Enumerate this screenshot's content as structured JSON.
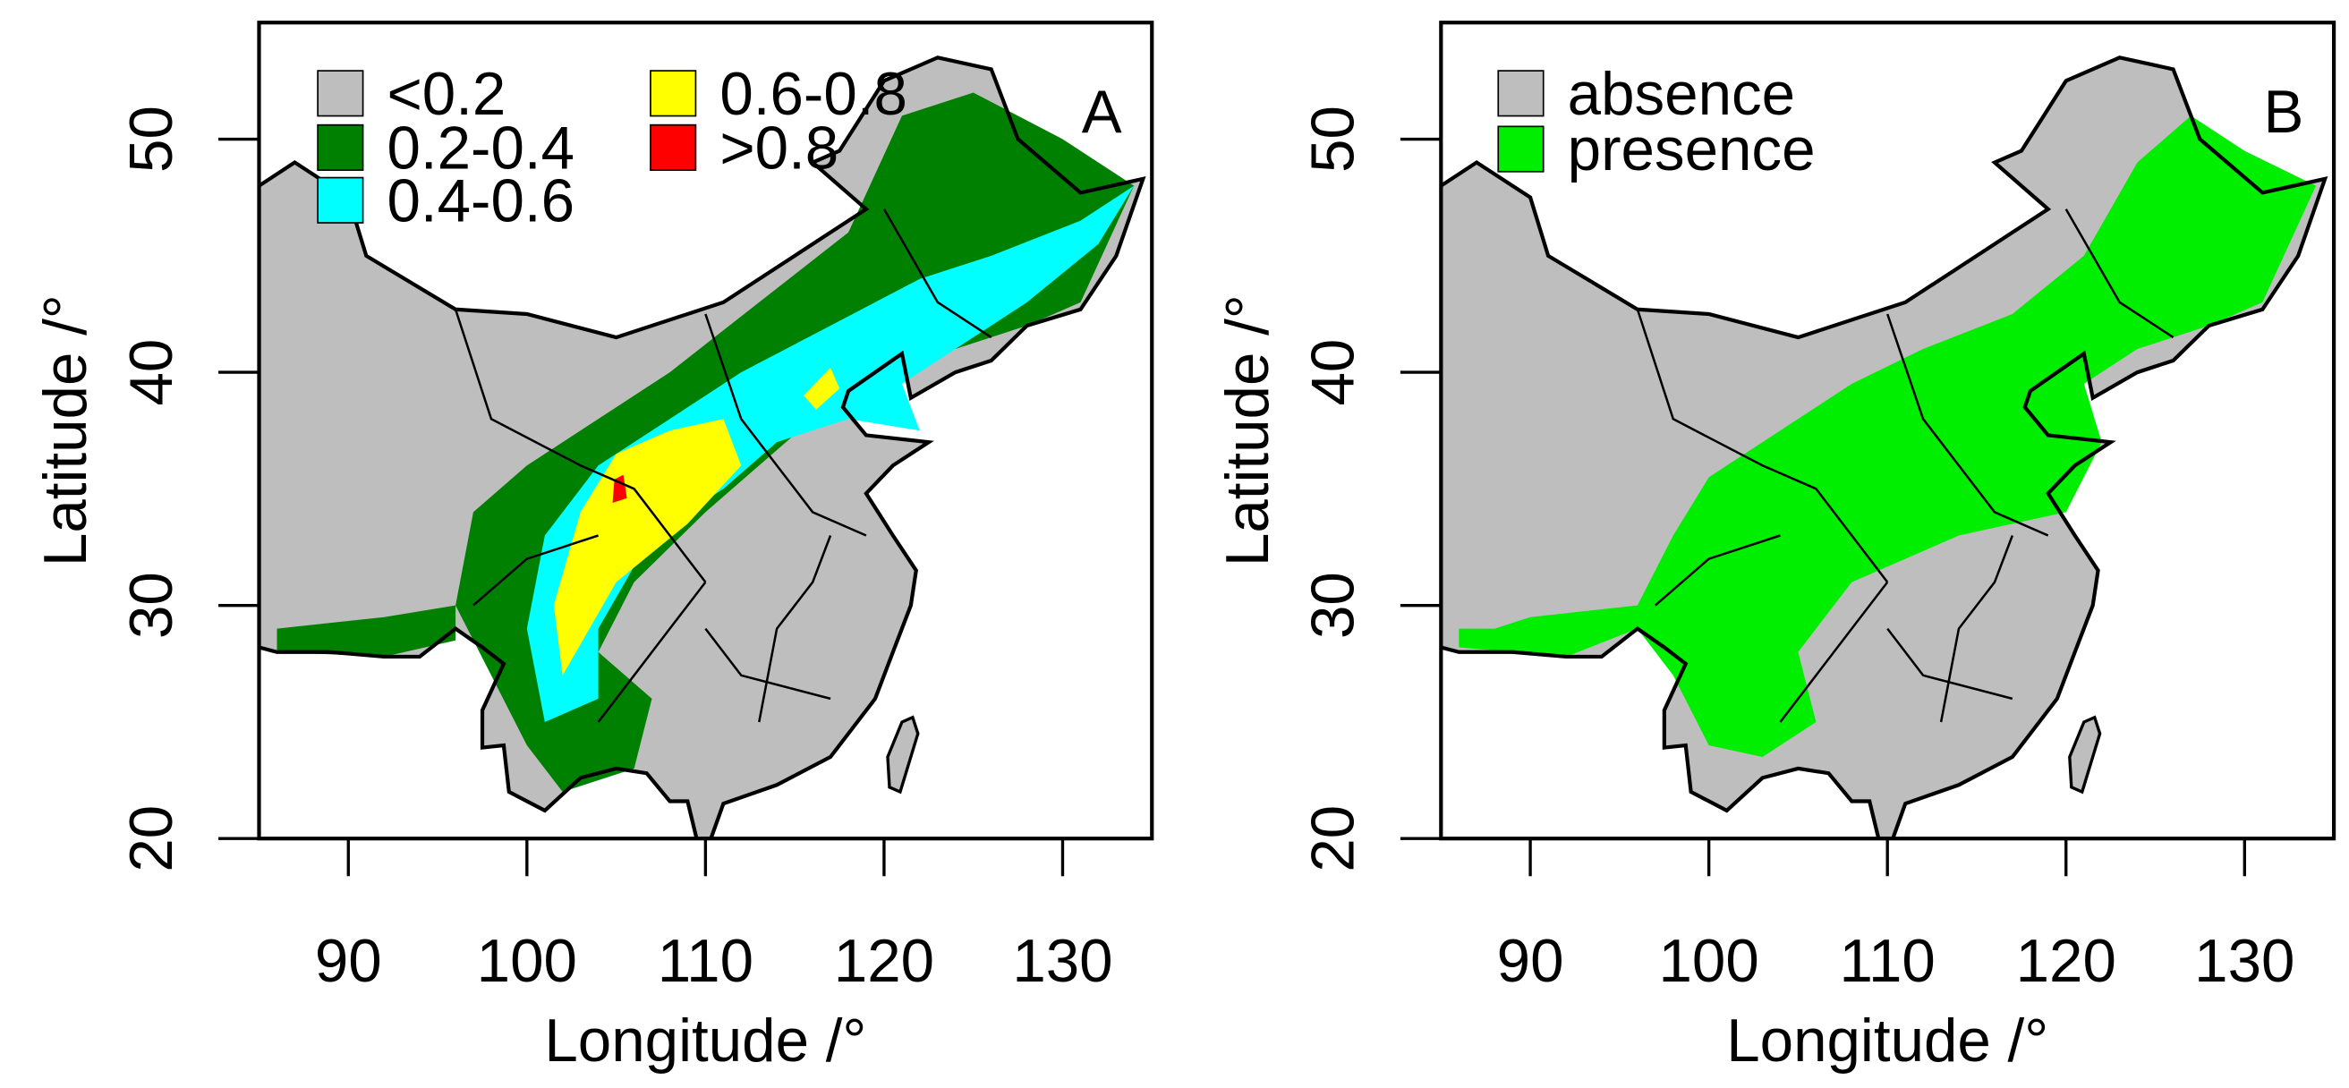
{
  "panels": [
    {
      "label": "A",
      "xlabel": "Longitude /°",
      "ylabel": "Latitude /°",
      "xlim": [
        85,
        135
      ],
      "ylim": [
        20,
        55
      ],
      "xticks": [
        90,
        100,
        110,
        120,
        130
      ],
      "yticks": [
        20,
        30,
        40,
        50
      ],
      "legend": [
        {
          "label": "<0.2",
          "color": "#bebebe"
        },
        {
          "label": "0.2-0.4",
          "color": "#008000"
        },
        {
          "label": "0.4-0.6",
          "color": "#00ffff"
        },
        {
          "label": "0.6-0.8",
          "color": "#ffff00"
        },
        {
          "label": ">0.8",
          "color": "#ff0000"
        }
      ]
    },
    {
      "label": "B",
      "xlabel": "Longitude /°",
      "ylabel": "Latitude /°",
      "xlim": [
        85,
        135
      ],
      "ylim": [
        20,
        55
      ],
      "xticks": [
        90,
        100,
        110,
        120,
        130
      ],
      "yticks": [
        20,
        30,
        40,
        50
      ],
      "legend": [
        {
          "label": "absence",
          "color": "#bebebe"
        },
        {
          "label": "presence",
          "color": "#00ee00"
        }
      ]
    }
  ]
}
